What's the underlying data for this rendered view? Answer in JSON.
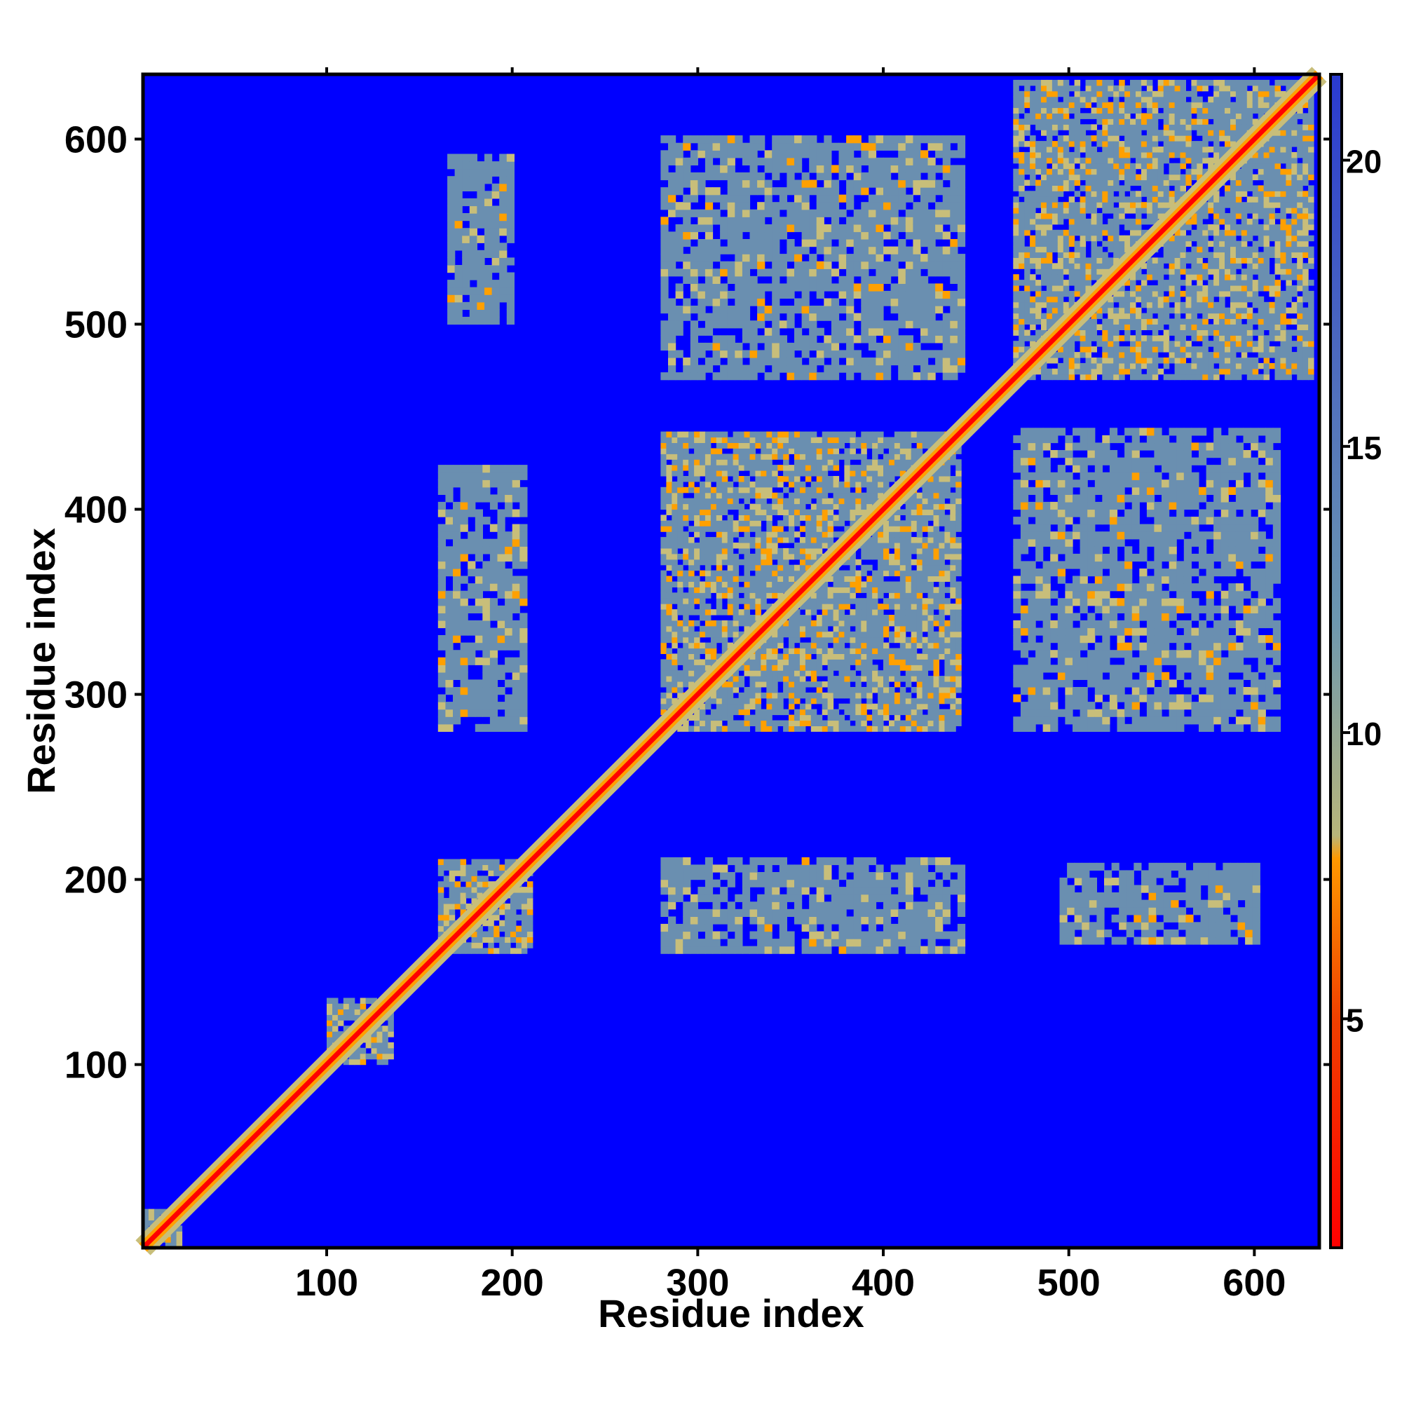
{
  "chart_data": {
    "type": "heatmap",
    "title": "",
    "xlabel": "Residue index",
    "ylabel": "Residue index",
    "xlim": [
      1,
      635
    ],
    "ylim": [
      1,
      635
    ],
    "x_ticks": [
      100,
      200,
      300,
      400,
      500,
      600
    ],
    "y_ticks": [
      100,
      200,
      300,
      400,
      500,
      600
    ],
    "colorbar": {
      "range": [
        1,
        21.5
      ],
      "ticks": [
        5,
        10,
        15,
        20
      ],
      "stops": [
        {
          "value": 1,
          "color": "#ff0000"
        },
        {
          "value": 5,
          "color": "#f04000"
        },
        {
          "value": 7.8,
          "color": "#ff9900"
        },
        {
          "value": 8.2,
          "color": "#b8b67a"
        },
        {
          "value": 12,
          "color": "#6c97b0"
        },
        {
          "value": 21.5,
          "color": "#2a3ad0"
        }
      ]
    },
    "background_value": 22,
    "colors": {
      "background": "#0000ff",
      "diagonal": "#ff0000",
      "near": "#ffa000",
      "mid": "#c8be7a",
      "far": "#6a8fb0"
    },
    "domains": [
      {
        "x": [
          1,
          20
        ],
        "y": [
          1,
          20
        ]
      },
      {
        "x": [
          100,
          135
        ],
        "y": [
          100,
          135
        ]
      },
      {
        "x": [
          160,
          210
        ],
        "y": [
          160,
          210
        ]
      },
      {
        "x": [
          280,
          440
        ],
        "y": [
          280,
          440
        ]
      },
      {
        "x": [
          470,
          630
        ],
        "y": [
          470,
          630
        ]
      }
    ],
    "offdiagonal_blocks": [
      {
        "x": [
          165,
          200
        ],
        "y": [
          500,
          590
        ]
      },
      {
        "x": [
          160,
          205
        ],
        "y": [
          280,
          420
        ]
      },
      {
        "x": [
          280,
          440
        ],
        "y": [
          160,
          210
        ]
      },
      {
        "x": [
          495,
          600
        ],
        "y": [
          165,
          205
        ]
      },
      {
        "x": [
          280,
          440
        ],
        "y": [
          470,
          600
        ]
      },
      {
        "x": [
          470,
          610
        ],
        "y": [
          280,
          440
        ]
      }
    ]
  }
}
